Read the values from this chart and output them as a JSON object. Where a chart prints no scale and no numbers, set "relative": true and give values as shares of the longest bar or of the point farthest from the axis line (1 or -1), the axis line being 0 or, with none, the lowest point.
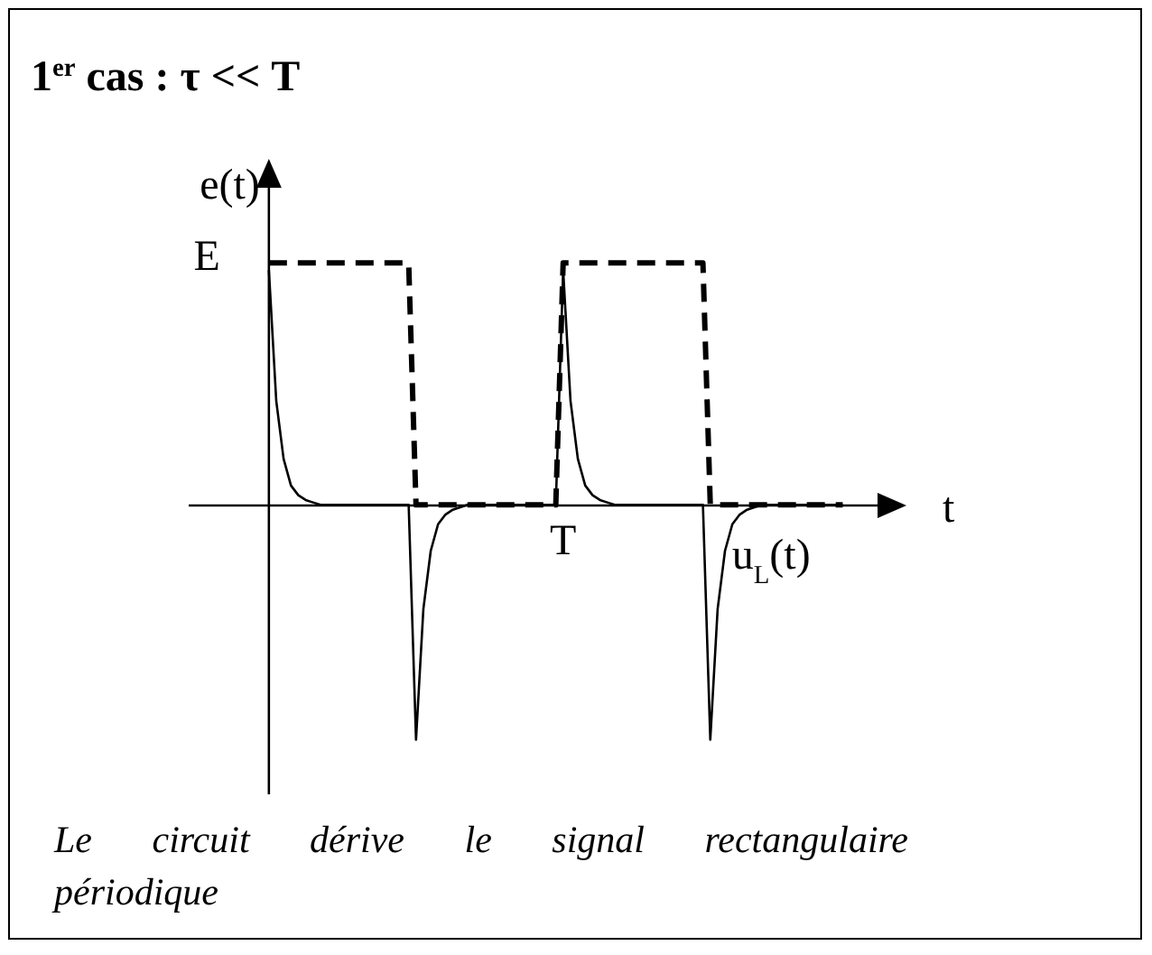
{
  "chart_data": {
    "type": "line",
    "relative": true,
    "title": "1$^{er}$ cas : τ << T",
    "xlabel": "t",
    "ylabel": "e(t)",
    "categories": [
      null,
      null,
      null,
      null,
      null,
      null,
      null,
      null,
      null,
      null,
      null,
      null,
      null,
      null,
      null,
      null,
      null,
      null,
      null,
      null,
      null,
      null,
      null,
      null,
      null,
      null,
      null,
      null,
      null,
      null,
      null,
      null,
      null,
      null,
      null,
      null,
      null,
      null,
      null,
      null,
      null,
      null,
      null,
      null,
      null,
      null,
      null,
      null,
      null,
      null,
      null,
      null,
      null,
      null,
      null,
      null,
      null,
      null,
      null,
      null,
      null,
      null,
      null,
      null,
      null,
      null,
      null,
      null,
      null,
      null,
      null,
      null,
      null,
      null,
      null,
      null,
      null,
      null,
      null
    ],
    "annotations": [
      "E",
      "T",
      "Le circuit dérive le signal rectangulaire périodique"
    ],
    "series": [
      {
        "color": "#000000",
        "line_style": "dashed",
        "values": [
          1,
          1,
          1,
          1,
          1,
          1,
          1,
          1,
          1,
          1,
          1,
          1,
          1,
          1,
          1,
          1,
          1,
          1,
          1,
          1,
          0,
          0,
          0,
          0,
          0,
          0,
          0,
          0,
          0,
          0,
          0,
          0,
          0,
          0,
          0,
          0,
          0,
          0,
          0,
          0,
          1,
          1,
          1,
          1,
          1,
          1,
          1,
          1,
          1,
          1,
          1,
          1,
          1,
          1,
          1,
          1,
          1,
          1,
          1,
          1,
          0,
          0,
          0,
          0,
          0,
          0,
          0,
          0,
          0,
          0,
          0,
          0,
          0,
          0,
          0,
          0,
          0,
          0,
          0
        ]
      },
      {
        "name": "u$_{L}$(t)",
        "color": "#000000",
        "line_style": "solid",
        "values": [
          0.97,
          0.43,
          0.19,
          0.08,
          0.04,
          0.02,
          0.01,
          0,
          0,
          0,
          0,
          0,
          0,
          0,
          0,
          0,
          0,
          0,
          0,
          0,
          -0.97,
          -0.43,
          -0.19,
          -0.08,
          -0.04,
          -0.02,
          -0.01,
          0,
          0,
          0,
          0,
          0,
          0,
          0,
          0,
          0,
          0,
          0,
          0,
          0,
          0.97,
          0.43,
          0.19,
          0.08,
          0.04,
          0.02,
          0.01,
          0,
          0,
          0,
          0,
          0,
          0,
          0,
          0,
          0,
          0,
          0,
          0,
          0,
          -0.97,
          -0.43,
          -0.19,
          -0.08,
          -0.04,
          -0.02,
          -0.01,
          0,
          0,
          0,
          0,
          0,
          0,
          0,
          0,
          0,
          0,
          0,
          0
        ]
      }
    ]
  }
}
